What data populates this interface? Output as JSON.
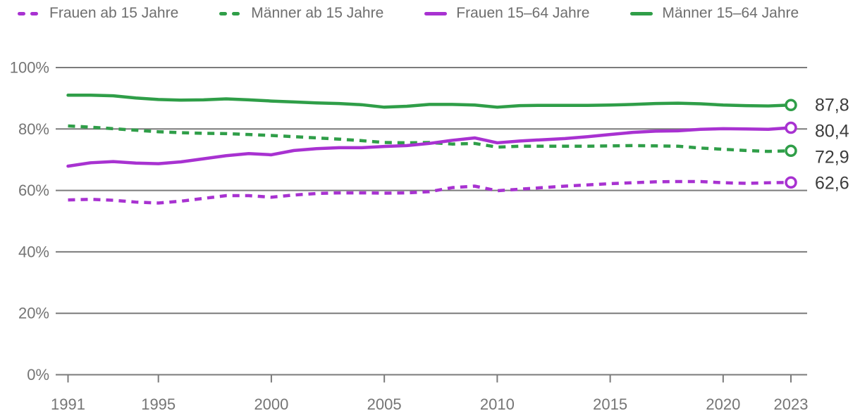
{
  "legend": {
    "position": "top",
    "items": [
      {
        "label": "Frauen ab 15 Jahre",
        "style": "dashed",
        "color": "#a832d1"
      },
      {
        "label": "Männer ab 15 Jahre",
        "style": "dashed",
        "color": "#2f9e48"
      },
      {
        "label": "Frauen 15–64 Jahre",
        "style": "solid",
        "color": "#a832d1"
      },
      {
        "label": "Männer 15–64 Jahre",
        "style": "solid",
        "color": "#2f9e48"
      }
    ]
  },
  "colors": {
    "purple": "#a832d1",
    "green": "#2f9e48",
    "grid": "#7b7b7b",
    "axis_text": "#757575",
    "end_label_text": "#3c3c3c",
    "marker_fill": "#ffffff"
  },
  "chart_data": {
    "type": "line",
    "x": [
      1991,
      1992,
      1993,
      1994,
      1995,
      1996,
      1997,
      1998,
      1999,
      2000,
      2001,
      2002,
      2003,
      2004,
      2005,
      2006,
      2007,
      2008,
      2009,
      2010,
      2011,
      2012,
      2013,
      2014,
      2015,
      2016,
      2017,
      2018,
      2019,
      2020,
      2021,
      2022,
      2023
    ],
    "x_tick_labels": [
      "1991",
      "1995",
      "2000",
      "2005",
      "2010",
      "2015",
      "2020",
      "2023"
    ],
    "x_ticks": [
      1991,
      1995,
      2000,
      2005,
      2010,
      2015,
      2020,
      2023
    ],
    "y_ticks": [
      0,
      20,
      40,
      60,
      80,
      100
    ],
    "y_tick_labels": [
      "0%",
      "20%",
      "40%",
      "60%",
      "80%",
      "100%"
    ],
    "ylim": [
      0,
      100
    ],
    "xlim": [
      1991,
      2023
    ],
    "grid": "horizontal",
    "legend_position": "top",
    "series": [
      {
        "name": "Frauen ab 15 Jahre",
        "color": "#a832d1",
        "dash": true,
        "end_label": "62,6",
        "values": [
          56.9,
          57.1,
          56.8,
          56.2,
          55.9,
          56.5,
          57.4,
          58.3,
          58.3,
          57.8,
          58.5,
          59.0,
          59.2,
          59.2,
          59.1,
          59.2,
          59.6,
          60.9,
          61.4,
          59.9,
          60.4,
          60.9,
          61.4,
          61.8,
          62.2,
          62.5,
          62.8,
          62.9,
          62.9,
          62.5,
          62.3,
          62.5,
          62.6
        ]
      },
      {
        "name": "Männer ab 15 Jahre",
        "color": "#2f9e48",
        "dash": true,
        "end_label": "72,9",
        "values": [
          81.0,
          80.6,
          80.1,
          79.6,
          79.1,
          78.8,
          78.6,
          78.5,
          78.2,
          77.9,
          77.5,
          77.1,
          76.7,
          76.2,
          75.6,
          75.5,
          75.6,
          75.1,
          75.3,
          74.1,
          74.4,
          74.4,
          74.4,
          74.4,
          74.5,
          74.6,
          74.5,
          74.4,
          73.8,
          73.4,
          73.0,
          72.7,
          72.9
        ]
      },
      {
        "name": "Frauen 15–64 Jahre",
        "color": "#a832d1",
        "dash": false,
        "end_label": "80,4",
        "values": [
          67.9,
          69.0,
          69.4,
          68.9,
          68.7,
          69.3,
          70.3,
          71.3,
          72.0,
          71.6,
          73.0,
          73.6,
          73.9,
          73.9,
          74.3,
          74.6,
          75.3,
          76.3,
          77.1,
          75.5,
          76.1,
          76.5,
          76.9,
          77.5,
          78.2,
          78.9,
          79.3,
          79.4,
          79.9,
          80.1,
          80.0,
          79.9,
          80.4
        ]
      },
      {
        "name": "Männer 15–64 Jahre",
        "color": "#2f9e48",
        "dash": false,
        "end_label": "87,8",
        "values": [
          91.0,
          91.0,
          90.8,
          90.1,
          89.6,
          89.4,
          89.5,
          89.8,
          89.5,
          89.1,
          88.8,
          88.5,
          88.3,
          87.9,
          87.1,
          87.4,
          88.0,
          88.0,
          87.8,
          87.1,
          87.6,
          87.7,
          87.7,
          87.7,
          87.8,
          88.0,
          88.3,
          88.4,
          88.2,
          87.8,
          87.6,
          87.5,
          87.8
        ]
      }
    ]
  }
}
